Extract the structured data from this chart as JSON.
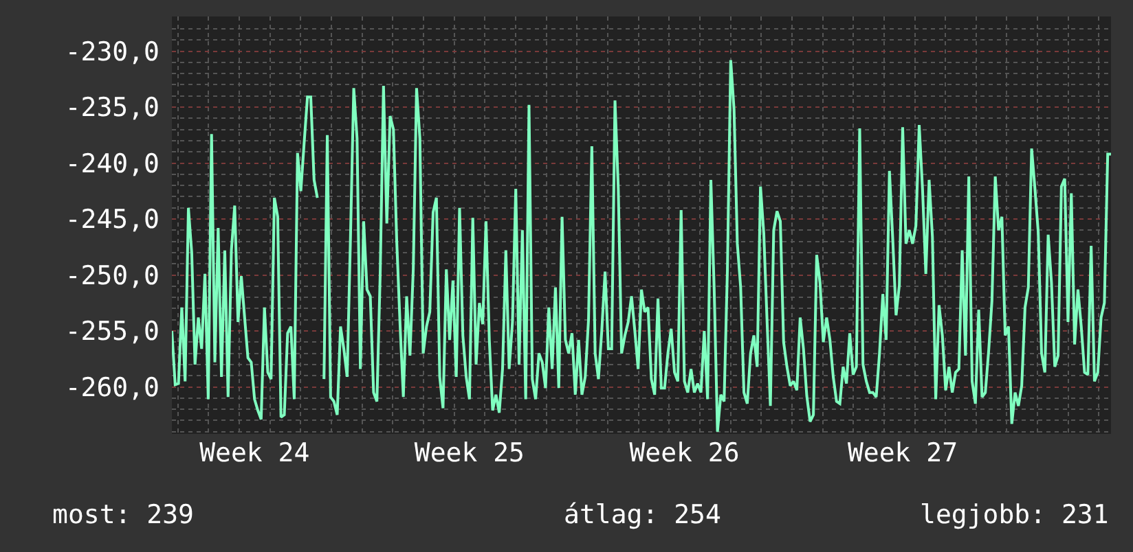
{
  "chart_data": {
    "type": "line",
    "categories": [
      null,
      null,
      null,
      null,
      null,
      null,
      null,
      null,
      null,
      null,
      null,
      null,
      null,
      null,
      null,
      null,
      null,
      null,
      null,
      null,
      null,
      null,
      null,
      null,
      null,
      "Week 24",
      null,
      null,
      null,
      null,
      null,
      null,
      null,
      null,
      null,
      null,
      null,
      null,
      null,
      null,
      null,
      null,
      null,
      null,
      null,
      null,
      null,
      null,
      null,
      null,
      null,
      null,
      null,
      null,
      null,
      null,
      null,
      null,
      null,
      null,
      null,
      null,
      null,
      null,
      null,
      null,
      null,
      null,
      null,
      null,
      null,
      null,
      null,
      null,
      null,
      null,
      null,
      null,
      null,
      null,
      null,
      null,
      null,
      null,
      null,
      null,
      null,
      null,
      null,
      null,
      "Week 25",
      null,
      null,
      null,
      null,
      null,
      null,
      null,
      null,
      null,
      null,
      null,
      null,
      null,
      null,
      null,
      null,
      null,
      null,
      null,
      null,
      null,
      null,
      null,
      null,
      null,
      null,
      null,
      null,
      null,
      null,
      null,
      null,
      null,
      null,
      null,
      null,
      null,
      null,
      null,
      null,
      null,
      null,
      null,
      null,
      null,
      null,
      null,
      null,
      null,
      null,
      null,
      null,
      null,
      null,
      null,
      null,
      null,
      null,
      null,
      null,
      null,
      null,
      null,
      null,
      "Week 26",
      null,
      null,
      null,
      null,
      null,
      null,
      null,
      null,
      null,
      null,
      null,
      null,
      null,
      null,
      null,
      null,
      null,
      null,
      null,
      null,
      null,
      null,
      null,
      null,
      null,
      null,
      null,
      null,
      null,
      null,
      null,
      null,
      null,
      null,
      null,
      null,
      null,
      null,
      null,
      null,
      null,
      null,
      null,
      null,
      null,
      null,
      null,
      null,
      null,
      null,
      null,
      null,
      null,
      null,
      null,
      null,
      null,
      null,
      null,
      null,
      null,
      null,
      null,
      null,
      null,
      "Week 27",
      null,
      null,
      null,
      null,
      null,
      null,
      null,
      null,
      null,
      null,
      null,
      null,
      null,
      null,
      null,
      null,
      null,
      null,
      null,
      null,
      null,
      null,
      null,
      null,
      null,
      null,
      null,
      null,
      null,
      null,
      null,
      null,
      null,
      null,
      null,
      null,
      null,
      null,
      null,
      null,
      null,
      null,
      null,
      null,
      null,
      null,
      null,
      null,
      null,
      null,
      null,
      null,
      null,
      null,
      null,
      null,
      null,
      null,
      null,
      null,
      null,
      null,
      null
    ],
    "series": [
      {
        "color": "#80ffc0",
        "values": [
          -255.0,
          -259.8,
          -259.7,
          -252.9,
          -259.5,
          -244.0,
          -248.0,
          -258.0,
          -253.8,
          -256.6,
          -249.9,
          -261.1,
          -237.4,
          -257.8,
          -245.8,
          -259.1,
          -247.8,
          -260.9,
          -247.8,
          -243.8,
          -254.2,
          -250.1,
          -253.8,
          -257.4,
          -257.8,
          -261.1,
          -262.1,
          -262.9,
          -252.9,
          -258.7,
          -259.3,
          -243.1,
          -244.8,
          -262.7,
          -262.5,
          -255.2,
          -254.6,
          -261.1,
          -239.1,
          -242.5,
          -238.2,
          -234.1,
          -234.1,
          -241.5,
          -243.1,
          null,
          -259.3,
          -237.5,
          -260.9,
          -261.3,
          -262.5,
          -254.6,
          -256.6,
          -259.1,
          -246.8,
          -233.3,
          -237.8,
          -258.4,
          -245.2,
          -251.3,
          -251.9,
          -260.5,
          -261.3,
          -249.9,
          -233.1,
          -245.4,
          -235.8,
          -237.0,
          -247.0,
          -254.4,
          -260.9,
          -251.9,
          -257.2,
          -249.5,
          -233.3,
          -237.8,
          -257.0,
          -254.6,
          -253.3,
          -244.4,
          -243.1,
          -259.1,
          -261.9,
          -249.5,
          -255.8,
          -250.5,
          -259.1,
          -244.0,
          -255.4,
          -259.1,
          -261.1,
          -244.9,
          -258.0,
          -252.5,
          -254.4,
          -245.2,
          -255.8,
          -262.1,
          -260.7,
          -262.3,
          -258.4,
          -247.8,
          -258.4,
          -254.2,
          -242.3,
          -258.0,
          -246.0,
          -261.1,
          -234.8,
          -259.3,
          -261.1,
          -257.0,
          -257.8,
          -260.1,
          -252.9,
          -258.4,
          -251.1,
          -260.1,
          -244.8,
          -255.8,
          -257.0,
          -255.2,
          -260.7,
          -255.8,
          -260.7,
          -259.1,
          -254.0,
          -238.5,
          -257.0,
          -259.3,
          -255.0,
          -249.7,
          -256.6,
          -256.6,
          -234.4,
          -242.3,
          -257.0,
          -255.4,
          -254.2,
          -251.9,
          -255.0,
          -258.4,
          -251.3,
          -253.3,
          -252.9,
          -259.3,
          -260.7,
          -252.1,
          -260.1,
          -260.1,
          -257.0,
          -254.8,
          -258.7,
          -259.5,
          -244.2,
          -259.5,
          -260.5,
          -258.4,
          -260.5,
          -259.7,
          -260.5,
          -255.0,
          -261.1,
          -241.5,
          -251.3,
          -264.0,
          -260.7,
          -261.3,
          -249.5,
          -230.8,
          -235.2,
          -247.2,
          -251.1,
          -260.5,
          -261.5,
          -257.0,
          -255.4,
          -258.2,
          -242.1,
          -246.3,
          -254.2,
          -261.7,
          -246.0,
          -244.3,
          -245.2,
          -256.0,
          -258.2,
          -259.9,
          -259.5,
          -260.3,
          -253.8,
          -256.6,
          -260.8,
          -263.1,
          -262.5,
          -248.2,
          -250.7,
          -256.0,
          -253.8,
          -255.8,
          -259.1,
          -261.3,
          -261.5,
          -258.2,
          -259.7,
          -255.2,
          -258.9,
          -258.2,
          -236.9,
          -258.0,
          -259.5,
          -260.5,
          -260.5,
          -260.9,
          -257.0,
          -251.7,
          -255.8,
          -240.7,
          -246.8,
          -253.6,
          -250.9,
          -236.8,
          -247.2,
          -246.0,
          -247.2,
          -245.6,
          -236.6,
          -242.3,
          -249.9,
          -241.5,
          -246.6,
          -261.1,
          -252.7,
          -255.4,
          -260.3,
          -258.2,
          -260.5,
          -258.7,
          -258.4,
          -247.8,
          -257.2,
          -241.2,
          -259.5,
          -261.5,
          -253.1,
          -260.9,
          -260.5,
          -256.8,
          -252.3,
          -241.2,
          -246.0,
          -244.8,
          -255.4,
          -254.6,
          -263.3,
          -260.5,
          -261.7,
          -259.9,
          -252.9,
          -251.1,
          -238.7,
          -242.3,
          -246.2,
          -257.0,
          -258.7,
          -246.4,
          -250.7,
          -258.2,
          -257.2,
          -242.1,
          -241.4,
          -254.2,
          -242.7,
          -256.2,
          -251.3,
          -254.6,
          -258.7,
          -258.9,
          -247.4,
          -259.5,
          -258.7,
          -253.8,
          -252.5,
          -239.2,
          -239.2
        ]
      }
    ],
    "ylim": [
      -264.2,
      -226.9
    ],
    "yticks": [
      {
        "value": -260,
        "label": "-260,0"
      },
      {
        "value": -255,
        "label": "-255,0"
      },
      {
        "value": -250,
        "label": "-250,0"
      },
      {
        "value": -245,
        "label": "-245,0"
      },
      {
        "value": -240,
        "label": "-240,0"
      },
      {
        "value": -235,
        "label": "-235,0"
      },
      {
        "value": -230,
        "label": "-230,0"
      }
    ],
    "grid": true,
    "annotations": [
      "most: 239",
      "átlag: 254",
      "legjobb: 231"
    ]
  }
}
